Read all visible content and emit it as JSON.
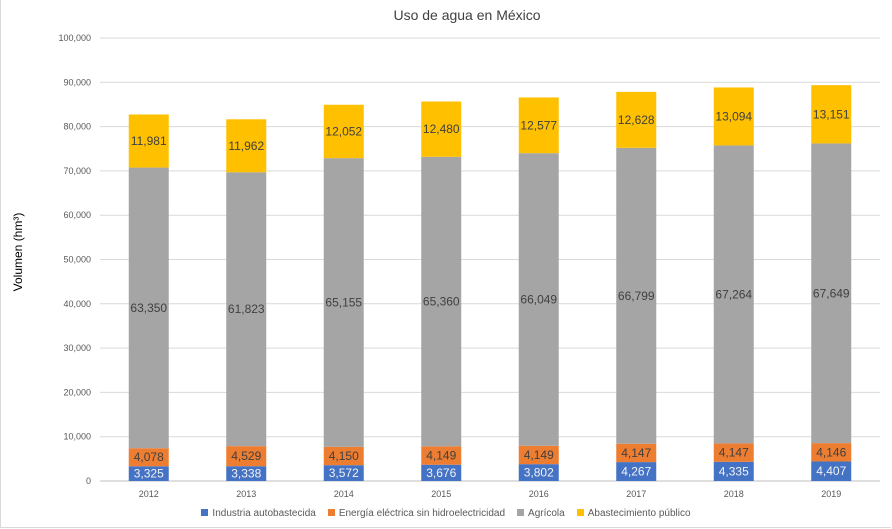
{
  "chart_data": {
    "type": "bar",
    "stacked": true,
    "title": "Uso de agua en México",
    "xlabel": "",
    "ylabel": "Volumen (hm³)",
    "ylim": [
      0,
      100000
    ],
    "yticks": [
      "0",
      "10,000",
      "20,000",
      "30,000",
      "40,000",
      "50,000",
      "60,000",
      "70,000",
      "80,000",
      "90,000",
      "100,000"
    ],
    "ytick_values": [
      0,
      10000,
      20000,
      30000,
      40000,
      50000,
      60000,
      70000,
      80000,
      90000,
      100000
    ],
    "categories": [
      "2012",
      "2013",
      "2014",
      "2015",
      "2016",
      "2017",
      "2018",
      "2019"
    ],
    "grid": true,
    "legend_position": "bottom",
    "series": [
      {
        "name": "Industria autobastecida",
        "color": "#4472c4",
        "values": [
          3325,
          3338,
          3572,
          3676,
          3802,
          4267,
          4335,
          4407
        ],
        "labels": [
          "3,325",
          "3,338",
          "3,572",
          "3,676",
          "3,802",
          "4,267",
          "4,335",
          "4,407"
        ]
      },
      {
        "name": "Energía eléctrica sin hidroelectricidad",
        "color": "#ed7d31",
        "values": [
          4078,
          4529,
          4150,
          4149,
          4149,
          4147,
          4147,
          4146
        ],
        "labels": [
          "4,078",
          "4,529",
          "4,150",
          "4,149",
          "4,149",
          "4,147",
          "4,147",
          "4,146"
        ]
      },
      {
        "name": "Agrícola",
        "color": "#a5a5a5",
        "values": [
          63350,
          61823,
          65155,
          65360,
          66049,
          66799,
          67264,
          67649
        ],
        "labels": [
          "63,350",
          "61,823",
          "65,155",
          "65,360",
          "66,049",
          "66,799",
          "67,264",
          "67,649"
        ]
      },
      {
        "name": "Abastecimiento público",
        "color": "#ffc000",
        "values": [
          11981,
          11962,
          12052,
          12480,
          12577,
          12628,
          13094,
          13151
        ],
        "labels": [
          "11,981",
          "11,962",
          "12,052",
          "12,480",
          "12,577",
          "12,628",
          "13,094",
          "13,151"
        ]
      }
    ]
  }
}
